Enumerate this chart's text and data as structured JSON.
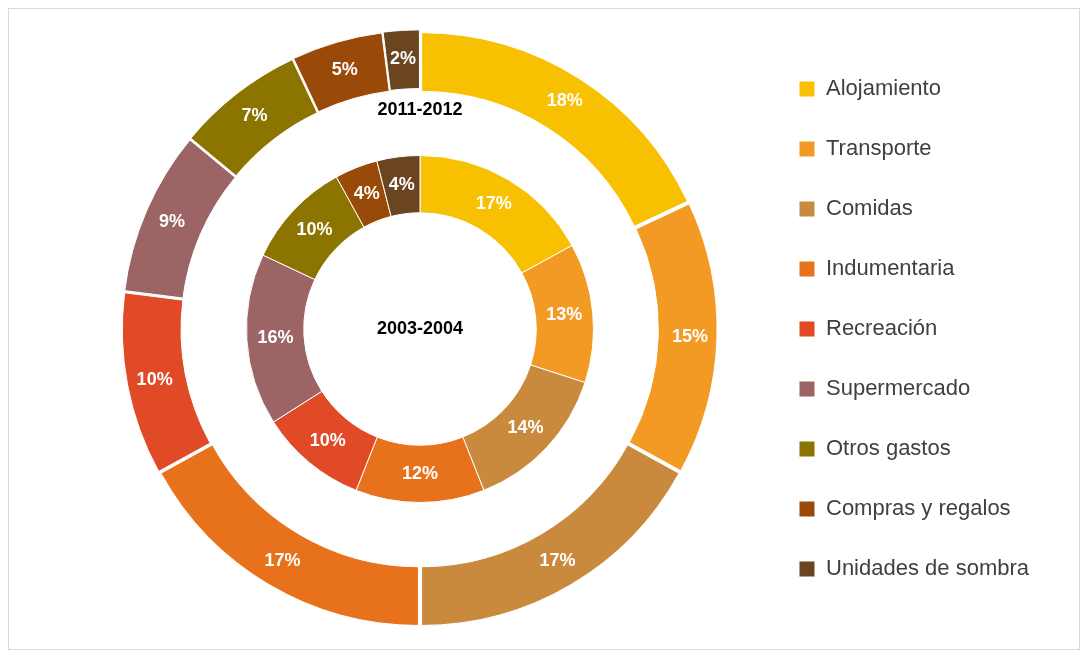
{
  "chart_data": {
    "type": "donut",
    "categories": [
      "Alojamiento",
      "Transporte",
      "Comidas",
      "Indumentaria",
      "Recreación",
      "Supermercado",
      "Otros gastos",
      "Compras y regalos",
      "Unidades de sombra"
    ],
    "colors": [
      "#f7c000",
      "#f39a24",
      "#c98a3e",
      "#e8711c",
      "#e04a26",
      "#9c6464",
      "#8c7400",
      "#9a4a08",
      "#6b4420"
    ],
    "series": [
      {
        "name": "2011-2012",
        "values": [
          18,
          15,
          17,
          17,
          10,
          9,
          7,
          5,
          2
        ],
        "value_labels": [
          "18%",
          "15%",
          "17%",
          "17%",
          "10%",
          "9%",
          "7%",
          "5%",
          "2%"
        ]
      },
      {
        "name": "2003-2004",
        "values": [
          17,
          13,
          14,
          12,
          10,
          16,
          10,
          4,
          4
        ],
        "value_labels": [
          "17%",
          "13%",
          "14%",
          "12%",
          "10%",
          "16%",
          "10%",
          "4%",
          "4%"
        ]
      }
    ],
    "legend": "right"
  }
}
